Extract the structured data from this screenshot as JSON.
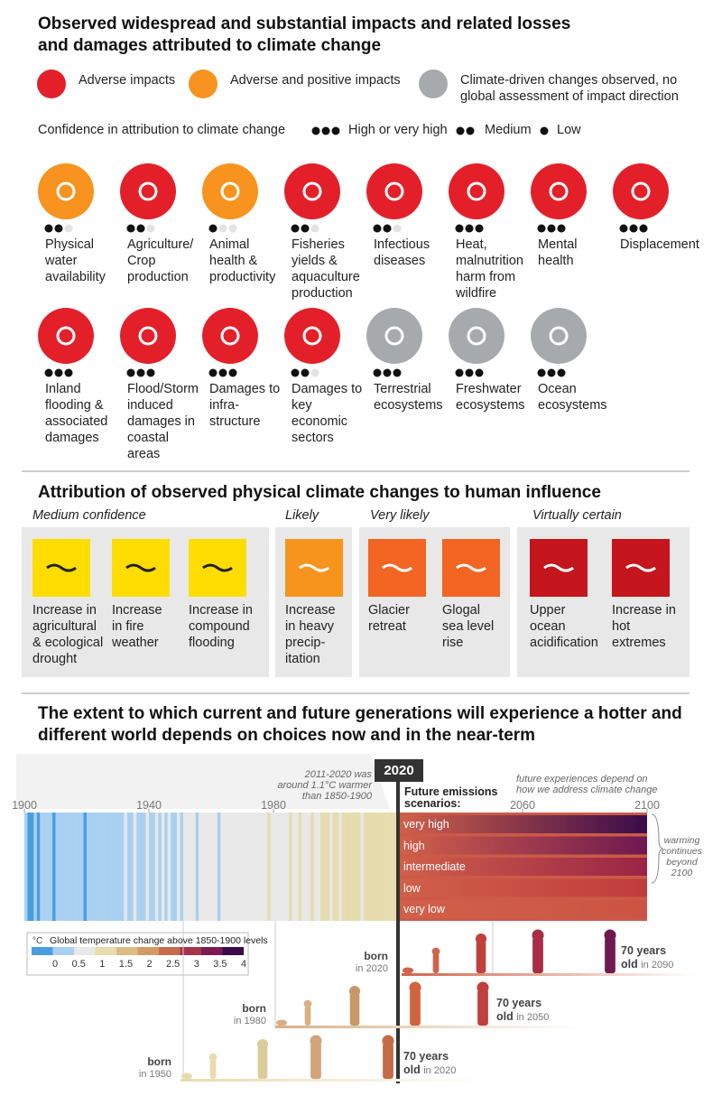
{
  "header": {
    "title": "Observed widespread and substantial impacts and related losses\nand damages attributed to climate change"
  },
  "legend": [
    {
      "label": "Adverse impacts",
      "color": "#e3202a"
    },
    {
      "label": "Adverse and positive impacts",
      "color": "#f7931e"
    },
    {
      "label": "Climate-driven changes observed, no\nglobal assessment of impact direction",
      "color": "#a7aaac"
    }
  ],
  "confidence": {
    "label": "Confidence in attribution to climate change",
    "levels": [
      {
        "dots": 3,
        "label": "High or very high"
      },
      {
        "dots": 2,
        "label": "Medium"
      },
      {
        "dots": 1,
        "label": "Low"
      }
    ]
  },
  "impacts": [
    {
      "label": "Physical\nwater\navailability",
      "color": "#f7931e",
      "dots": 2
    },
    {
      "label": "Agriculture/\nCrop\nproduction",
      "color": "#e3202a",
      "dots": 2
    },
    {
      "label": "Animal\nhealth &\nproductivity",
      "color": "#f7931e",
      "dots": 1
    },
    {
      "label": "Fisheries\nyields &\naquaculture\nproduction",
      "color": "#e3202a",
      "dots": 2
    },
    {
      "label": "Infectious\ndiseases",
      "color": "#e3202a",
      "dots": 2
    },
    {
      "label": "Heat,\nmalnutrition\nharm from\nwildfire",
      "color": "#e3202a",
      "dots": 3
    },
    {
      "label": "Mental\nhealth",
      "color": "#e3202a",
      "dots": 3
    },
    {
      "label": "Displacement",
      "color": "#e3202a",
      "dots": 3
    },
    {
      "label": "Inland\nflooding &\nassociated\ndamages",
      "color": "#e3202a",
      "dots": 3
    },
    {
      "label": "Flood/Storm\ninduced\ndamages in\ncoastal\nareas",
      "color": "#e3202a",
      "dots": 3
    },
    {
      "label": "Damages to\ninfra-\nstructure",
      "color": "#e3202a",
      "dots": 3
    },
    {
      "label": "Damages to\nkey\neconomic\nsectors",
      "color": "#e3202a",
      "dots": 2
    },
    {
      "label": "Terrestrial\necosystems",
      "color": "#a7aaac",
      "dots": 3
    },
    {
      "label": "Freshwater\necosystems",
      "color": "#a7aaac",
      "dots": 3
    },
    {
      "label": "Ocean\necosystems",
      "color": "#a7aaac",
      "dots": 3
    }
  ],
  "attribution": {
    "title": "Attribution of observed physical climate changes to human influence",
    "groups": [
      {
        "label": "Medium confidence",
        "items": [
          {
            "label": "Increase in\nagricultural\n& ecological\ndrought",
            "color": "#ffdd00"
          },
          {
            "label": "Increase\nin fire\nweather",
            "color": "#ffdd00"
          },
          {
            "label": "Increase in\ncompound\nflooding",
            "color": "#ffdd00"
          }
        ]
      },
      {
        "label": "Likely",
        "items": [
          {
            "label": "Increase\nin heavy\nprecip-\nitation",
            "color": "#f7941d"
          }
        ]
      },
      {
        "label": "Very likely",
        "items": [
          {
            "label": "Glacier\nretreat",
            "color": "#f26522"
          },
          {
            "label": "Glogal\nsea level\nrise",
            "color": "#f26522"
          }
        ]
      },
      {
        "label": "Virtually certain",
        "items": [
          {
            "label": "Upper\nocean\nacidification",
            "color": "#c4161c"
          },
          {
            "label": "Increase in\nhot\nextremes",
            "color": "#c4161c"
          }
        ]
      }
    ]
  },
  "future": {
    "title": "The extent to which current and future generations will experience a hotter and\ndifferent world depends on choices now and in the near-term",
    "note_past": "2011-2020 was\naround 1.1°C warmer\nthan 1850-1900",
    "now": 2020,
    "scenarios_label": "Future emissions\nscenarios:",
    "note_future": "future experiences depend on\nhow we address climate change",
    "note_beyond": "warming\ncontinues\nbeyond\n2100",
    "xlim": [
      1900,
      2100
    ],
    "xticks": [
      1900,
      1940,
      1980,
      2060,
      2100
    ],
    "scenarios": [
      "very high",
      "high",
      "intermediate",
      "low",
      "very low"
    ],
    "colorbar": {
      "unit": "°C",
      "label": "Global temperature change above 1850-1900 levels",
      "ticks": [
        0,
        0.5,
        1,
        1.5,
        2,
        2.5,
        3,
        3.5,
        4
      ]
    },
    "generations": [
      {
        "born": "born",
        "born_in": "in 2020",
        "age": "70 years",
        "old": "old",
        "old_in": "in 2090"
      },
      {
        "born": "born",
        "born_in": "in 1980",
        "age": "70 years",
        "old": "old",
        "old_in": "in 2050"
      },
      {
        "born": "born",
        "born_in": "in 1950",
        "age": "70 years",
        "old": "old",
        "old_in": "in 2020"
      }
    ]
  }
}
